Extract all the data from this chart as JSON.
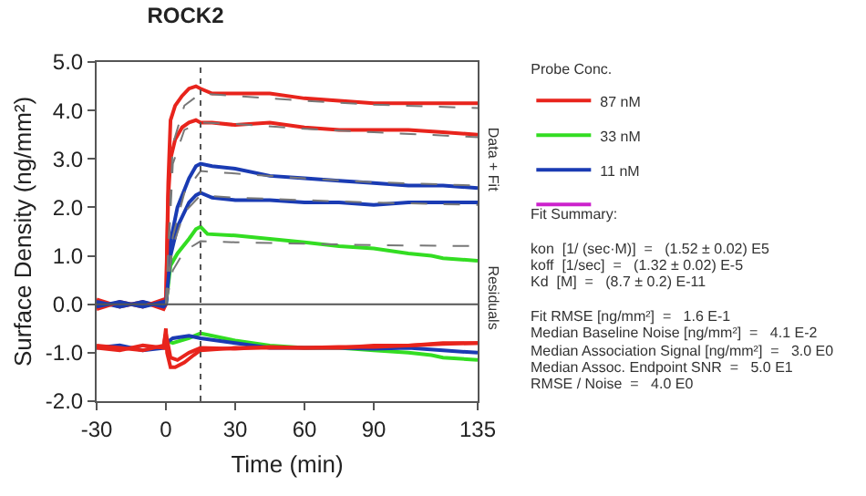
{
  "chart_data": {
    "type": "line",
    "title": "ROCK2",
    "xlabel": "Time (min)",
    "ylabel": "Surface Density (ng/mm²)",
    "legend_title": "Probe Conc.",
    "xlim": [
      -30,
      135
    ],
    "xticks": [
      -30,
      0,
      30,
      60,
      90,
      135
    ],
    "ylim": [
      -2,
      5
    ],
    "yticks": [
      {
        "value": -2,
        "label": "-2.0"
      },
      {
        "value": -1,
        "label": "-1.0"
      },
      {
        "value": 0,
        "label": "0.0"
      },
      {
        "value": 1,
        "label": "1.0"
      },
      {
        "value": 2,
        "label": "2.0"
      },
      {
        "value": 3,
        "label": "3.0"
      },
      {
        "value": 4,
        "label": "4.0"
      },
      {
        "value": 5,
        "label": "5.0"
      }
    ],
    "legend": "right",
    "marker": "none",
    "ref_lines": [
      {
        "axis": "x",
        "value": 15,
        "color": "#555555",
        "line_style": "dotted"
      },
      {
        "axis": "y",
        "value": 0,
        "color": "#555555",
        "line_style": "solid"
      }
    ],
    "series": [
      {
        "name": "87 nM",
        "color": "#e8241c",
        "x": [
          -30,
          -20,
          -10,
          -1,
          0,
          1,
          2,
          4,
          7,
          10,
          13,
          15,
          20,
          30,
          45,
          60,
          75,
          90,
          105,
          120,
          135
        ],
        "values": [
          0.1,
          -0.05,
          0.05,
          -0.1,
          0.0,
          2.5,
          3.8,
          4.1,
          4.3,
          4.45,
          4.5,
          4.45,
          4.35,
          4.35,
          4.35,
          4.25,
          4.2,
          4.15,
          4.15,
          4.15,
          4.15
        ]
      },
      {
        "name": "33 nM",
        "color": "#33dd22",
        "x": [
          0,
          2,
          5,
          10,
          13,
          15,
          18,
          30,
          45,
          60,
          75,
          90,
          105,
          115,
          120,
          135
        ],
        "values": [
          0.0,
          0.8,
          1.05,
          1.35,
          1.55,
          1.6,
          1.45,
          1.42,
          1.35,
          1.28,
          1.2,
          1.15,
          1.05,
          1.0,
          0.95,
          0.9
        ]
      },
      {
        "name": "11 nM",
        "color": "#1a3bb3",
        "x": [
          -30,
          -20,
          -10,
          -1,
          0,
          2,
          5,
          10,
          13,
          15,
          20,
          30,
          45,
          60,
          75,
          90,
          105,
          120,
          135
        ],
        "values": [
          0.05,
          -0.05,
          0.05,
          -0.05,
          0.0,
          1.3,
          2.0,
          2.6,
          2.85,
          2.9,
          2.85,
          2.8,
          2.65,
          2.6,
          2.55,
          2.5,
          2.45,
          2.45,
          2.4
        ]
      },
      {
        "color": "#cc22cc"
      },
      {
        "color": "#e8241c",
        "x": [
          -30,
          -20,
          -10,
          -1,
          0,
          1,
          2,
          4,
          7,
          10,
          13,
          15,
          20,
          30,
          45,
          60,
          75,
          90,
          105,
          120,
          135
        ],
        "values": [
          -0.1,
          0.05,
          -0.05,
          0.1,
          0.0,
          2.2,
          3.0,
          3.4,
          3.65,
          3.75,
          3.8,
          3.75,
          3.75,
          3.7,
          3.75,
          3.65,
          3.6,
          3.6,
          3.6,
          3.55,
          3.5
        ]
      },
      {
        "color": "#1a3bb3",
        "x": [
          -30,
          -20,
          -10,
          -1,
          0,
          2,
          5,
          10,
          13,
          15,
          20,
          30,
          45,
          60,
          75,
          90,
          105,
          120,
          135
        ],
        "values": [
          -0.05,
          0.05,
          -0.05,
          0.05,
          0.0,
          1.0,
          1.6,
          2.1,
          2.25,
          2.3,
          2.2,
          2.15,
          2.15,
          2.1,
          2.1,
          2.05,
          2.1,
          2.1,
          2.1
        ]
      },
      {
        "color": "#777777",
        "type": "line",
        "line_style": "dashed",
        "x": [
          0,
          3,
          8,
          15,
          30,
          60,
          90,
          135
        ],
        "values": [
          0.0,
          3.3,
          4.1,
          4.35,
          4.3,
          4.2,
          4.12,
          4.05
        ]
      },
      {
        "color": "#777777",
        "type": "line",
        "line_style": "dashed",
        "x": [
          0,
          3,
          8,
          15,
          30,
          60,
          90,
          135
        ],
        "values": [
          0.0,
          2.9,
          3.6,
          3.75,
          3.72,
          3.62,
          3.55,
          3.45
        ]
      },
      {
        "color": "#777777",
        "type": "line",
        "line_style": "dashed",
        "x": [
          0,
          3,
          8,
          15,
          30,
          60,
          90,
          135
        ],
        "values": [
          0.0,
          1.4,
          2.3,
          2.75,
          2.7,
          2.6,
          2.52,
          2.45
        ]
      },
      {
        "color": "#777777",
        "type": "line",
        "line_style": "dashed",
        "x": [
          0,
          3,
          8,
          15,
          30,
          60,
          90,
          135
        ],
        "values": [
          0.0,
          1.2,
          1.9,
          2.25,
          2.2,
          2.15,
          2.1,
          2.05
        ]
      },
      {
        "color": "#777777",
        "type": "line",
        "line_style": "dashed",
        "x": [
          0,
          3,
          8,
          15,
          30,
          60,
          90,
          135
        ],
        "values": [
          0.0,
          0.7,
          1.1,
          1.3,
          1.28,
          1.25,
          1.22,
          1.2
        ]
      },
      {
        "color": "#33dd22",
        "x": [
          0,
          3,
          10,
          15,
          30,
          45,
          60,
          75,
          90,
          105,
          115,
          120,
          135
        ],
        "values": [
          -0.75,
          -0.8,
          -0.7,
          -0.6,
          -0.75,
          -0.85,
          -0.9,
          -0.9,
          -0.95,
          -1.0,
          -1.05,
          -1.1,
          -1.15
        ]
      },
      {
        "color": "#1a3bb3",
        "x": [
          -30,
          -20,
          -10,
          -1,
          0,
          3,
          10,
          15,
          30,
          45,
          60,
          75,
          90,
          105,
          120,
          135
        ],
        "values": [
          -0.9,
          -0.85,
          -0.95,
          -0.9,
          -0.8,
          -0.7,
          -0.65,
          -0.7,
          -0.8,
          -0.9,
          -0.9,
          -0.9,
          -0.92,
          -0.9,
          -0.95,
          -1.0
        ]
      },
      {
        "color": "#e8241c",
        "x": [
          -30,
          -20,
          -10,
          -1,
          0,
          0.5,
          2,
          4,
          8,
          12,
          15,
          30,
          45,
          60,
          75,
          90,
          105,
          120,
          135
        ],
        "values": [
          -0.9,
          -0.95,
          -0.85,
          -0.9,
          -0.5,
          -1.0,
          -1.3,
          -1.3,
          -1.2,
          -1.05,
          -0.95,
          -0.9,
          -0.9,
          -0.9,
          -0.9,
          -0.85,
          -0.85,
          -0.8,
          -0.8
        ]
      },
      {
        "color": "#e8241c",
        "x": [
          -30,
          -20,
          -10,
          -1,
          0,
          2,
          5,
          10,
          15,
          30,
          45,
          60,
          75,
          90,
          105,
          120,
          135
        ],
        "values": [
          -0.85,
          -0.9,
          -0.95,
          -0.85,
          -0.6,
          -1.1,
          -1.15,
          -1.0,
          -0.9,
          -0.92,
          -0.88,
          -0.9,
          -0.88,
          -0.88,
          -0.85,
          -0.82,
          -0.8
        ]
      }
    ],
    "annotations": [
      "Data + Fit",
      "Residuals",
      "Fit Summary:",
      "kon  [1/ (sec·M)]  =   (1.52 ± 0.02) E5",
      "koff  [1/sec]  =   (1.32 ± 0.02) E-5",
      "Kd  [M]  =   (8.7 ± 0.2) E-11",
      "Fit RMSE [ng/mm²]  =   1.6 E-1",
      "Median Baseline Noise [ng/mm²]  =   4.1 E-2",
      "Median Association Signal [ng/mm²]  =   3.0 E0",
      "Median Assoc. Endpoint SNR  =   5.0 E1",
      "RMSE / Noise  =   4.0 E0"
    ]
  }
}
